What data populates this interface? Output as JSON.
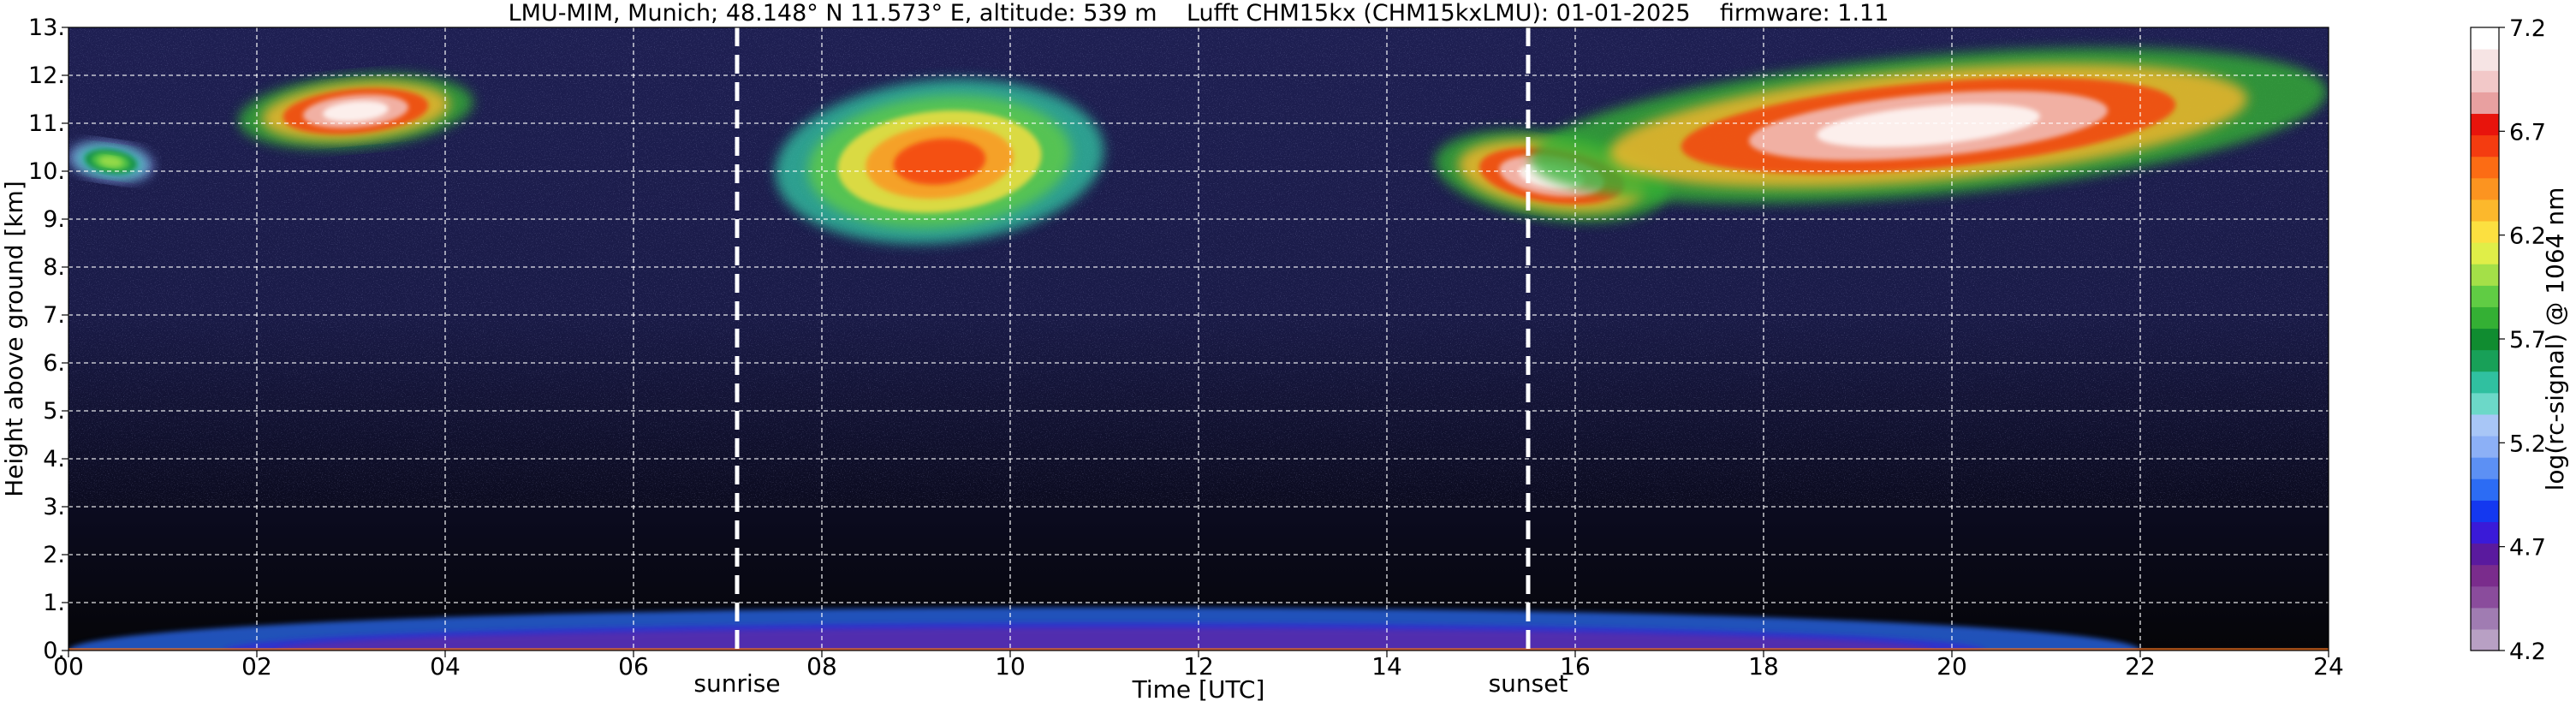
{
  "header": {
    "title": "LMU-MIM, Munich; 48.148° N 11.573° E, altitude: 539 m    Lufft CHM15kx (CHM15kxLMU): 01-01-2025    firmware: 1.11"
  },
  "chart_data": {
    "type": "heatmap",
    "title": "LMU-MIM, Munich; 48.148° N 11.573° E, altitude: 539 m    Lufft CHM15kx (CHM15kxLMU): 01-01-2025    firmware: 1.11",
    "xlabel": "Time [UTC]",
    "ylabel": "Height above ground [km]",
    "xlim": [
      0,
      24
    ],
    "ylim": [
      0,
      13
    ],
    "x_ticks": [
      {
        "value": 0,
        "label": "00"
      },
      {
        "value": 2,
        "label": "02"
      },
      {
        "value": 4,
        "label": "04"
      },
      {
        "value": 6,
        "label": "06"
      },
      {
        "value": 8,
        "label": "08"
      },
      {
        "value": 10,
        "label": "10"
      },
      {
        "value": 12,
        "label": "12"
      },
      {
        "value": 14,
        "label": "14"
      },
      {
        "value": 16,
        "label": "16"
      },
      {
        "value": 18,
        "label": "18"
      },
      {
        "value": 20,
        "label": "20"
      },
      {
        "value": 22,
        "label": "22"
      },
      {
        "value": 24,
        "label": "24"
      }
    ],
    "y_ticks": [
      {
        "value": 0,
        "label": "0."
      },
      {
        "value": 1,
        "label": "1."
      },
      {
        "value": 2,
        "label": "2."
      },
      {
        "value": 3,
        "label": "3."
      },
      {
        "value": 4,
        "label": "4."
      },
      {
        "value": 5,
        "label": "5."
      },
      {
        "value": 6,
        "label": "6."
      },
      {
        "value": 7,
        "label": "7."
      },
      {
        "value": 8,
        "label": "8."
      },
      {
        "value": 9,
        "label": "9."
      },
      {
        "value": 10,
        "label": "10."
      },
      {
        "value": 11,
        "label": "11."
      },
      {
        "value": 12,
        "label": "12."
      },
      {
        "value": 13,
        "label": "13."
      }
    ],
    "grid": true,
    "markers": [
      {
        "name": "sunrise",
        "x": 7.1
      },
      {
        "name": "sunset",
        "x": 15.5
      }
    ],
    "colorbar": {
      "label": "log(rc-signal) @ 1064 nm",
      "range": [
        4.2,
        7.2
      ],
      "tick_values": [
        4.2,
        4.7,
        5.2,
        5.7,
        6.2,
        6.7,
        7.2
      ],
      "tick_labels": [
        "4.2",
        "4.7",
        "5.2",
        "5.7",
        "6.2",
        "6.7",
        "7.2"
      ],
      "colors": [
        "#b8a0c4",
        "#a07cb2",
        "#8a4c9c",
        "#7a2c8c",
        "#5a1a9e",
        "#3a1ad8",
        "#1438f0",
        "#2c6cf4",
        "#5c90f4",
        "#8cb0f6",
        "#a8c6f6",
        "#6cd8c8",
        "#30c0a0",
        "#18a058",
        "#108c30",
        "#34b034",
        "#60cc44",
        "#a4e048",
        "#e0ee48",
        "#fce040",
        "#fcb82c",
        "#fc9420",
        "#fc6c14",
        "#f43c10",
        "#e8140c",
        "#e8a0a0",
        "#f2c8c8",
        "#f6e4e4",
        "#ffffff"
      ]
    },
    "features": [
      {
        "name": "cloud",
        "time": [
          1.8,
          4.3
        ],
        "height": [
          10.5,
          12.0
        ],
        "max_log_signal": 7.2
      },
      {
        "name": "cloud",
        "time": [
          0.0,
          0.9
        ],
        "height": [
          9.8,
          10.6
        ],
        "max_log_signal": 6.0
      },
      {
        "name": "cloud",
        "time": [
          7.5,
          11.0
        ],
        "height": [
          8.5,
          11.9
        ],
        "max_log_signal": 6.6
      },
      {
        "name": "cloud",
        "time": [
          14.5,
          17.0
        ],
        "height": [
          9.0,
          10.8
        ],
        "max_log_signal": 7.2
      },
      {
        "name": "cloud",
        "time": [
          15.5,
          24.0
        ],
        "height": [
          9.5,
          12.4
        ],
        "max_log_signal": 7.2
      },
      {
        "name": "boundary layer",
        "time": [
          0.0,
          22.0
        ],
        "height": [
          0.0,
          0.9
        ],
        "max_log_signal": 5.0
      }
    ]
  }
}
